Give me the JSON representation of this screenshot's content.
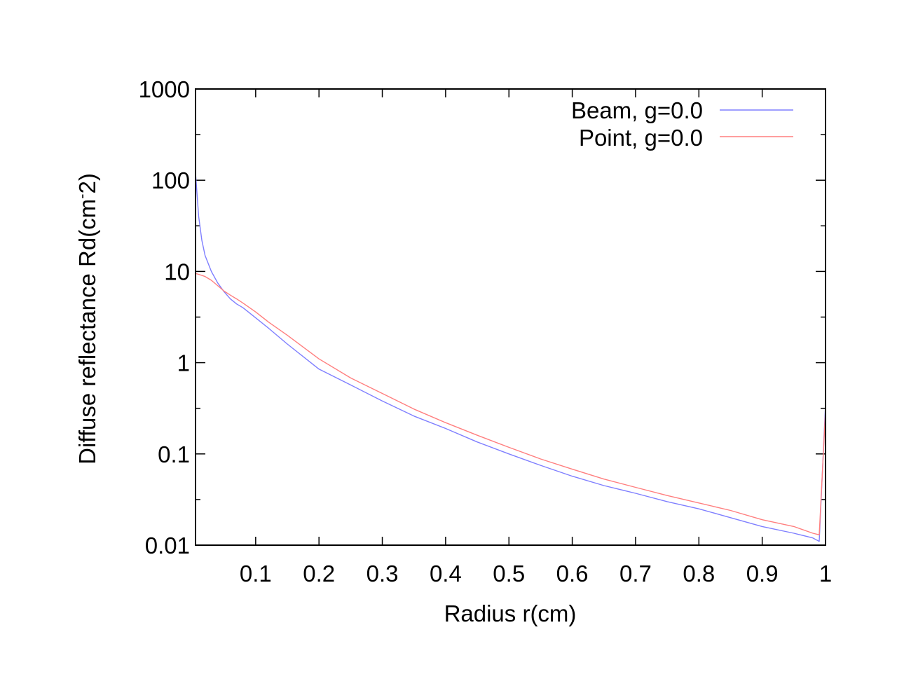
{
  "chart_data": {
    "type": "line",
    "title": "",
    "xlabel": "Radius r(cm)",
    "ylabel": "Diffuse reflectance Rd(cm^-2)",
    "ylabel_main": "Diffuse reflectance Rd(cm",
    "ylabel_sup": "-",
    "ylabel_tail": "2)",
    "xlim": [
      0.005,
      1.0
    ],
    "ylim": [
      0.01,
      1000
    ],
    "yscale": "log",
    "grid": false,
    "legend_position": "top-right",
    "x_ticks": [
      {
        "value": 0.1,
        "label": "0.1"
      },
      {
        "value": 0.2,
        "label": "0.2"
      },
      {
        "value": 0.3,
        "label": "0.3"
      },
      {
        "value": 0.4,
        "label": "0.4"
      },
      {
        "value": 0.5,
        "label": "0.5"
      },
      {
        "value": 0.6,
        "label": "0.6"
      },
      {
        "value": 0.7,
        "label": "0.7"
      },
      {
        "value": 0.8,
        "label": "0.8"
      },
      {
        "value": 0.9,
        "label": "0.9"
      },
      {
        "value": 1.0,
        "label": "1"
      }
    ],
    "y_ticks": [
      {
        "value": 1000,
        "label": "1000"
      },
      {
        "value": 100,
        "label": "100"
      },
      {
        "value": 10,
        "label": "10"
      },
      {
        "value": 1,
        "label": "1"
      },
      {
        "value": 0.1,
        "label": "0.1"
      },
      {
        "value": 0.01,
        "label": "0.01"
      }
    ],
    "series": [
      {
        "name": "Beam, g=0.0",
        "color": "#7f7fff",
        "x": [
          0.005,
          0.01,
          0.015,
          0.02,
          0.03,
          0.04,
          0.05,
          0.06,
          0.07,
          0.08,
          0.1,
          0.12,
          0.15,
          0.2,
          0.25,
          0.3,
          0.35,
          0.4,
          0.45,
          0.5,
          0.55,
          0.6,
          0.65,
          0.7,
          0.75,
          0.8,
          0.85,
          0.9,
          0.95,
          0.98,
          0.99,
          1.0
        ],
        "y": [
          120,
          40,
          22,
          15,
          10,
          7.5,
          6.0,
          5.0,
          4.4,
          4.0,
          3.1,
          2.4,
          1.6,
          0.85,
          0.57,
          0.38,
          0.26,
          0.19,
          0.135,
          0.1,
          0.075,
          0.057,
          0.045,
          0.037,
          0.03,
          0.025,
          0.02,
          0.016,
          0.0135,
          0.012,
          0.011,
          0.35
        ]
      },
      {
        "name": "Point, g=0.0",
        "color": "#ff7f7f",
        "x": [
          0.005,
          0.01,
          0.02,
          0.03,
          0.04,
          0.05,
          0.06,
          0.07,
          0.08,
          0.1,
          0.12,
          0.15,
          0.2,
          0.25,
          0.3,
          0.35,
          0.4,
          0.45,
          0.5,
          0.55,
          0.6,
          0.65,
          0.7,
          0.75,
          0.8,
          0.85,
          0.9,
          0.95,
          0.98,
          0.99,
          1.0
        ],
        "y": [
          9.5,
          9.3,
          8.8,
          8.0,
          7.0,
          6.1,
          5.5,
          5.0,
          4.5,
          3.6,
          2.8,
          2.0,
          1.1,
          0.68,
          0.46,
          0.31,
          0.22,
          0.16,
          0.118,
          0.088,
          0.068,
          0.053,
          0.043,
          0.035,
          0.029,
          0.024,
          0.019,
          0.016,
          0.0135,
          0.013,
          0.3
        ]
      }
    ]
  }
}
